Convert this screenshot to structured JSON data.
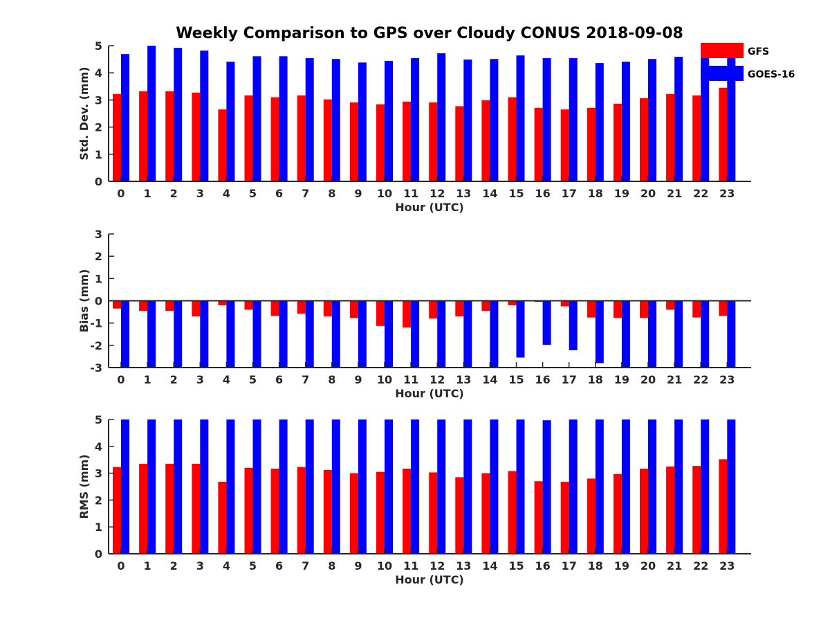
{
  "title": "Weekly Comparison to GPS over Cloudy CONUS 2018-09-08",
  "colors": {
    "gfs": "#ff0000",
    "goes": "#0000ff",
    "axis": "#262626"
  },
  "legend": {
    "placement": "top-right",
    "items": [
      "GFS",
      "GOES-16"
    ]
  },
  "chart_data": [
    {
      "type": "bar",
      "ylabel": "Std. Dev. (mm)",
      "xlabel": "Hour (UTC)",
      "ylim": [
        0,
        5
      ],
      "yticks": [
        "0",
        "1",
        "2",
        "3",
        "4",
        "5"
      ],
      "categories": [
        "0",
        "1",
        "2",
        "3",
        "4",
        "5",
        "6",
        "7",
        "8",
        "9",
        "10",
        "11",
        "12",
        "13",
        "14",
        "15",
        "16",
        "17",
        "18",
        "19",
        "20",
        "21",
        "22",
        "23"
      ],
      "series": [
        {
          "name": "GFS",
          "values": [
            3.22,
            3.32,
            3.32,
            3.27,
            2.65,
            3.17,
            3.1,
            3.17,
            3.02,
            2.91,
            2.84,
            2.94,
            2.91,
            2.77,
            2.99,
            3.1,
            2.71,
            2.65,
            2.71,
            2.86,
            3.07,
            3.22,
            3.17,
            3.45
          ]
        },
        {
          "name": "GOES-16",
          "values": [
            4.69,
            5.0,
            4.92,
            4.82,
            4.41,
            4.61,
            4.61,
            4.54,
            4.51,
            4.38,
            4.44,
            4.54,
            4.72,
            4.49,
            4.51,
            4.64,
            4.54,
            4.54,
            4.36,
            4.41,
            4.51,
            4.59,
            4.69,
            4.64
          ]
        }
      ]
    },
    {
      "type": "bar",
      "ylabel": "Bias (mm)",
      "xlabel": "Hour (UTC)",
      "ylim": [
        -3,
        3
      ],
      "yticks": [
        "-3",
        "-2",
        "-1",
        "0",
        "1",
        "2",
        "3"
      ],
      "categories": [
        "0",
        "1",
        "2",
        "3",
        "4",
        "5",
        "6",
        "7",
        "8",
        "9",
        "10",
        "11",
        "12",
        "13",
        "14",
        "15",
        "16",
        "17",
        "18",
        "19",
        "20",
        "21",
        "22",
        "23"
      ],
      "series": [
        {
          "name": "GFS",
          "values": [
            -0.35,
            -0.45,
            -0.45,
            -0.7,
            -0.2,
            -0.4,
            -0.68,
            -0.58,
            -0.7,
            -0.77,
            -1.13,
            -1.2,
            -0.8,
            -0.7,
            -0.45,
            -0.2,
            -0.05,
            -0.25,
            -0.75,
            -0.77,
            -0.77,
            -0.4,
            -0.75,
            -0.68
          ]
        },
        {
          "name": "GOES-16",
          "values": [
            -3.0,
            -3.0,
            -3.0,
            -3.0,
            -3.0,
            -3.0,
            -3.0,
            -3.0,
            -3.0,
            -3.0,
            -3.0,
            -3.0,
            -3.0,
            -3.0,
            -3.0,
            -2.55,
            -1.98,
            -2.22,
            -2.8,
            -3.0,
            -3.0,
            -3.0,
            -3.0,
            -3.0
          ]
        }
      ]
    },
    {
      "type": "bar",
      "ylabel": "RMS (mm)",
      "xlabel": "Hour (UTC)",
      "ylim": [
        0,
        5
      ],
      "yticks": [
        "0",
        "1",
        "2",
        "3",
        "4",
        "5"
      ],
      "categories": [
        "0",
        "1",
        "2",
        "3",
        "4",
        "5",
        "6",
        "7",
        "8",
        "9",
        "10",
        "11",
        "12",
        "13",
        "14",
        "15",
        "16",
        "17",
        "18",
        "19",
        "20",
        "21",
        "22",
        "23"
      ],
      "series": [
        {
          "name": "GFS",
          "values": [
            3.23,
            3.35,
            3.35,
            3.35,
            2.68,
            3.2,
            3.17,
            3.23,
            3.12,
            3.0,
            3.05,
            3.17,
            3.03,
            2.85,
            3.0,
            3.08,
            2.7,
            2.68,
            2.8,
            2.97,
            3.17,
            3.25,
            3.27,
            3.52
          ]
        },
        {
          "name": "GOES-16",
          "values": [
            5.0,
            5.0,
            5.0,
            5.0,
            5.0,
            5.0,
            5.0,
            5.0,
            5.0,
            5.0,
            5.0,
            5.0,
            5.0,
            5.0,
            5.0,
            5.0,
            4.97,
            5.0,
            5.0,
            5.0,
            5.0,
            5.0,
            5.0,
            5.0
          ]
        }
      ]
    }
  ]
}
